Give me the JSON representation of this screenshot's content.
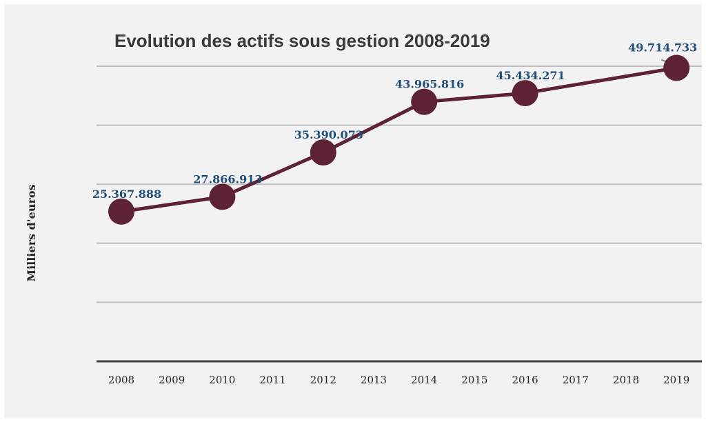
{
  "chart_data": {
    "type": "line",
    "title": "Evolution des actifs sous gestion 2008-2019",
    "xlabel": "",
    "ylabel": "Milliers d'euros",
    "categories": [
      "2008",
      "2009",
      "2010",
      "2011",
      "2012",
      "2013",
      "2014",
      "2015",
      "2016",
      "2017",
      "2018",
      "2019"
    ],
    "points": [
      {
        "x": "2008",
        "y": 25367888,
        "label": "25.367.888"
      },
      {
        "x": "2010",
        "y": 27866913,
        "label": "27.866.913"
      },
      {
        "x": "2012",
        "y": 35390073,
        "label": "35.390.073"
      },
      {
        "x": "2014",
        "y": 43965816,
        "label": "43.965.816"
      },
      {
        "x": "2016",
        "y": 45434271,
        "label": "45.434.271"
      },
      {
        "x": "2019",
        "y": 49714733,
        "label": "49.714.733"
      }
    ],
    "ylim": [
      0,
      60000000
    ],
    "y_gridlines": [
      10000000,
      20000000,
      30000000,
      40000000,
      50000000
    ],
    "ytick_labels_visible": false,
    "grid": true,
    "legend": "none",
    "colors": {
      "line": "#5e2235",
      "marker": "#5e2235",
      "data_label": "#1f4e79",
      "gridline": "#bfbfbf",
      "axis": "#404040",
      "background": "#f2f2f2"
    }
  }
}
